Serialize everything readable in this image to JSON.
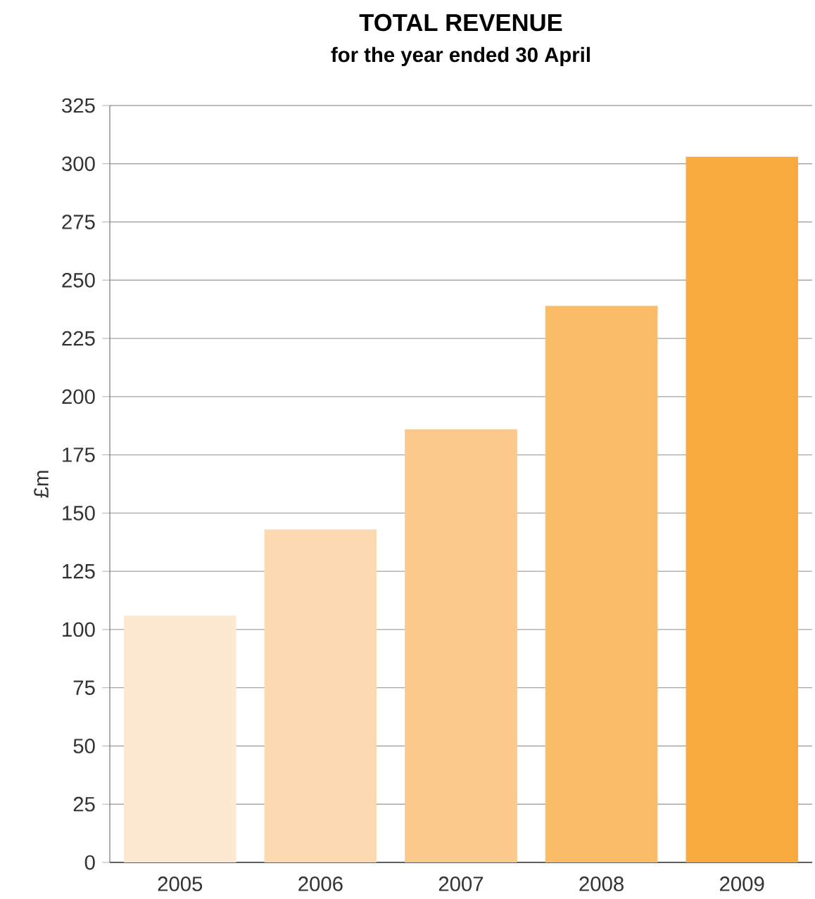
{
  "chart_data": {
    "type": "bar",
    "title": "TOTAL REVENUE",
    "subtitle": "for the year ended 30 April",
    "ylabel": "£m",
    "categories": [
      "2005",
      "2006",
      "2007",
      "2008",
      "2009"
    ],
    "values": [
      106,
      143,
      186,
      239,
      303
    ],
    "colors": [
      "#fde9d2",
      "#fcd9b0",
      "#fcc98d",
      "#fbbc68",
      "#f9ab40"
    ],
    "ylim": [
      0,
      325
    ],
    "yticks": [
      0,
      25,
      50,
      75,
      100,
      125,
      150,
      175,
      200,
      225,
      250,
      275,
      300,
      325
    ],
    "grid": "y"
  }
}
